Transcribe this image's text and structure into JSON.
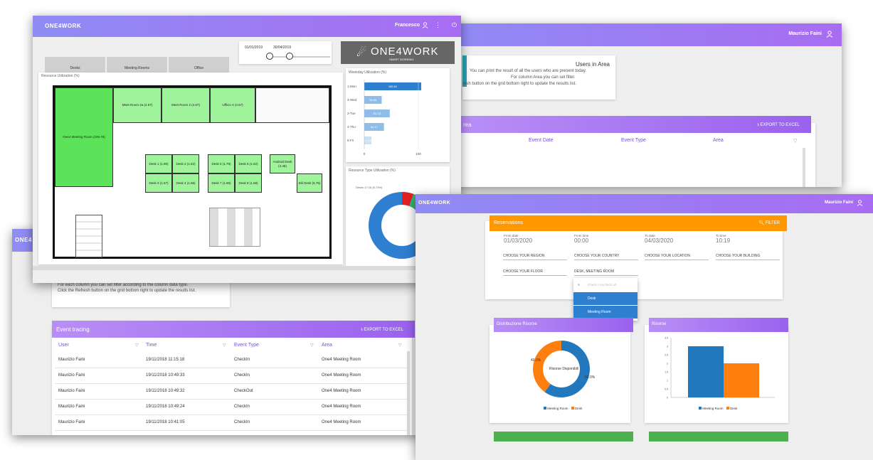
{
  "users_window": {
    "user": "Maurizio Faini",
    "title": "Users in Area",
    "lines": [
      "You can print the result of all the users who are present today.",
      "For column Area you can set filter.",
      "resh button on the grid bottom right to update the results list."
    ],
    "bar_title": "rea",
    "export": "EXPORT TO EXCEL",
    "columns": [
      "Event Date",
      "Event Type",
      "Area"
    ]
  },
  "event_window": {
    "logo": "ONE4",
    "lines": [
      "For each column you can set filter according to the column data type.",
      "Click the Refresh button on the grid bottom right to update the results list."
    ],
    "title": "Event tracing",
    "export": "EXPORT TO EXCEL",
    "columns": [
      "User",
      "Time",
      "Event Type",
      "Area"
    ],
    "rows": [
      {
        "user": "Maurizio Faini",
        "time": "19/11/2018 11:15:18",
        "type": "CheckIn",
        "area": "One4 Meeting Room"
      },
      {
        "user": "Maurizio Faini",
        "time": "19/11/2018 10:49:33",
        "type": "CheckIn",
        "area": "One4 Meeting Room"
      },
      {
        "user": "Maurizio Faini",
        "time": "19/11/2018 10:49:32",
        "type": "CheckOut",
        "area": "One4 Meeting Room"
      },
      {
        "user": "Maurizio Faini",
        "time": "19/11/2018 10:49:24",
        "type": "CheckIn",
        "area": "One4 Meeting Room"
      },
      {
        "user": "Maurizio Faini",
        "time": "19/11/2018 10:41:05",
        "type": "CheckIn",
        "area": "One4 Meeting Room"
      }
    ]
  },
  "floor_window": {
    "logo": "ONE4WORK",
    "user": "Francesco",
    "tabs": [
      "Desks",
      "Meeting Rooms",
      "Office"
    ],
    "date_from": "01/01/2019",
    "date_to": "30/04/2019",
    "brand": "ONE4WORK",
    "brand_sub": "SMART WORKING",
    "plan_title": "Resource Utilization (%)",
    "rooms": [
      {
        "label": "One4 Meeting Room (249.75)"
      },
      {
        "label": "Meet Room 2a (4.67)"
      },
      {
        "label": "Meet Room 2 (4.67)"
      },
      {
        "label": "Ufficio 4 (4.67)"
      },
      {
        "label": "Desk 1 (1.90)"
      },
      {
        "label": "Desk 2 (1.52)"
      },
      {
        "label": "Desk 3 (1.57)"
      },
      {
        "label": "Desk 4 (1.56)"
      },
      {
        "label": "Desk 5 (1.79)"
      },
      {
        "label": "Desk 6 (1.52)"
      },
      {
        "label": "Desk 7 (1.86)"
      },
      {
        "label": "Desk 8 (1.58)"
      },
      {
        "label": "Android Desk (4.46)"
      },
      {
        "label": "Dili Desk (6.75)"
      }
    ],
    "weekday_title": "Weekday Utilization (%)",
    "weekday": {
      "categories": [
        "1-Mon",
        "3-Wed",
        "2-Tue",
        "4-Thu",
        "5-Fri"
      ],
      "values": [
        185.61,
        56.86,
        83.13,
        64.17,
        23.15
      ],
      "labels": [
        "185.61",
        "56.86",
        "83.13",
        "64.17",
        "23.15"
      ],
      "xticks": [
        "0",
        "100"
      ]
    },
    "type_title": "Resource Type Utilization (%)",
    "type_label": "Desks 17.16 (5.73%)",
    "type_label2": "M..."
  },
  "reservation_window": {
    "logo": "ONE4WORK",
    "user": "Maurizio Faini",
    "title": "Reservations",
    "filter": "FILTER",
    "fields": [
      {
        "label": "From date",
        "value": "01/03/2020"
      },
      {
        "label": "From time",
        "value": "00:00"
      },
      {
        "label": "To date",
        "value": "04/03/2020"
      },
      {
        "label": "To time",
        "value": "10:19"
      }
    ],
    "selects": [
      "CHOOSE YOUR REGION",
      "CHOOSE YOUR COUNTRY",
      "CHOOSE YOUR LOCATION",
      "CHOOSE YOUR BUILDING",
      "CHOOSE YOUR FLOOR",
      "DESK, MEETING ROOM"
    ],
    "dropdown": [
      "Check / Uncheck all",
      "Desk",
      "Meeting Room"
    ],
    "pie_title": "Distribuzione Risorse",
    "pie_center": "Risorse Disponibili",
    "pie_labels": [
      "40.0%",
      "60.0%"
    ],
    "bar_title": "Risorse",
    "legend": [
      "Meeting Room",
      "Desk"
    ],
    "colors": {
      "meeting": "#2178bd",
      "desk": "#ff7f0e"
    },
    "chart_data": [
      {
        "type": "pie",
        "title": "Distribuzione Risorse",
        "categories": [
          "Meeting Room",
          "Desk"
        ],
        "values": [
          60,
          40
        ]
      },
      {
        "type": "bar",
        "title": "Risorse",
        "categories": [
          "Meeting Room",
          "Desk"
        ],
        "values": [
          3,
          2
        ],
        "ylim": [
          0,
          3.5
        ],
        "yticks": [
          "3.5",
          "3",
          "2.5",
          "2",
          "1.5",
          "1",
          "0.5",
          "0"
        ]
      }
    ]
  }
}
